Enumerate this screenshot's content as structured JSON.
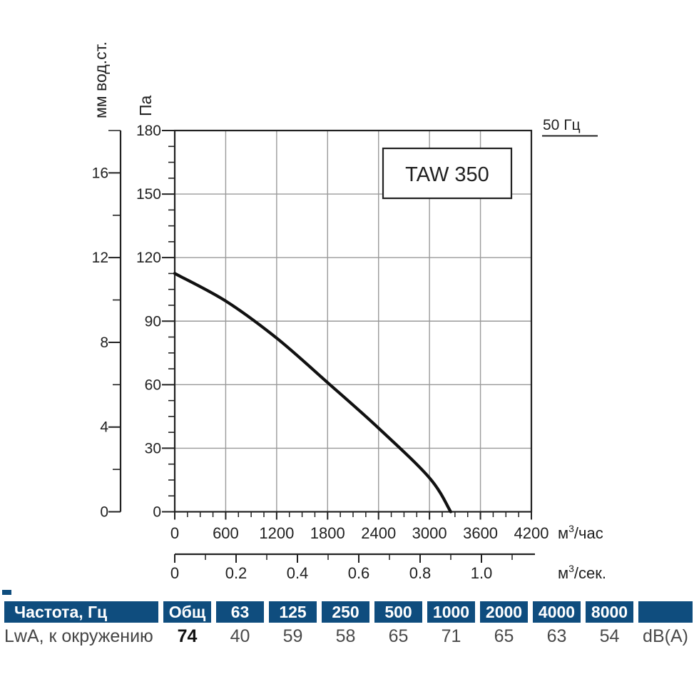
{
  "chart_data": {
    "type": "line",
    "title": "TAW 350",
    "frequency_label": "50 Гц",
    "grid": {
      "x_step": 600,
      "y_step": 30,
      "on": true
    },
    "legend_position": "none",
    "axes": {
      "pa": {
        "title": "Па",
        "major_ticks": [
          0,
          30,
          60,
          90,
          120,
          150,
          180
        ],
        "minor_step": 7.5,
        "range": [
          0,
          180
        ]
      },
      "mm": {
        "title": "мм вод.ст.",
        "labeled_ticks": [
          0,
          4,
          8,
          12,
          16
        ],
        "minor_step": 2,
        "range": [
          0,
          18
        ]
      },
      "hour": {
        "unit_base": "м",
        "unit_sup": "3",
        "unit_rest": "/час",
        "major_ticks": [
          0,
          600,
          1200,
          1800,
          2400,
          3000,
          3600,
          4200
        ],
        "minor_step": 150,
        "range": [
          0,
          4200
        ]
      },
      "sec": {
        "unit_base": "м",
        "unit_sup": "3",
        "unit_rest": "/сек.",
        "labeled_ticks": [
          0,
          0.2,
          0.4,
          0.6,
          0.8,
          1.0
        ],
        "minor_step": 0.1,
        "tick_max": 1.1
      }
    },
    "series": [
      {
        "name": "TAW 350 — 50 Гц",
        "x_unit": "м³/час",
        "y_unit": "Па",
        "points": [
          [
            0,
            112.5
          ],
          [
            600,
            99.5
          ],
          [
            1200,
            82
          ],
          [
            1800,
            61
          ],
          [
            2400,
            39.5
          ],
          [
            3000,
            16
          ],
          [
            3250,
            0
          ]
        ]
      }
    ]
  },
  "table": {
    "header_row": [
      "Частота, Гц",
      "Общ",
      "63",
      "125",
      "250",
      "500",
      "1000",
      "2000",
      "4000",
      "8000",
      ""
    ],
    "data_row": {
      "label": "LwA, к окружению",
      "values": [
        "74",
        "40",
        "59",
        "58",
        "65",
        "71",
        "65",
        "63",
        "54"
      ],
      "bold_value_index": 0,
      "unit": "dB(A)"
    }
  },
  "colors": {
    "navy": "#0f4d7e",
    "grid": "#9a9a9a",
    "axis": "#212121",
    "curve": "#111111",
    "value_text": "#4a4a4a"
  }
}
